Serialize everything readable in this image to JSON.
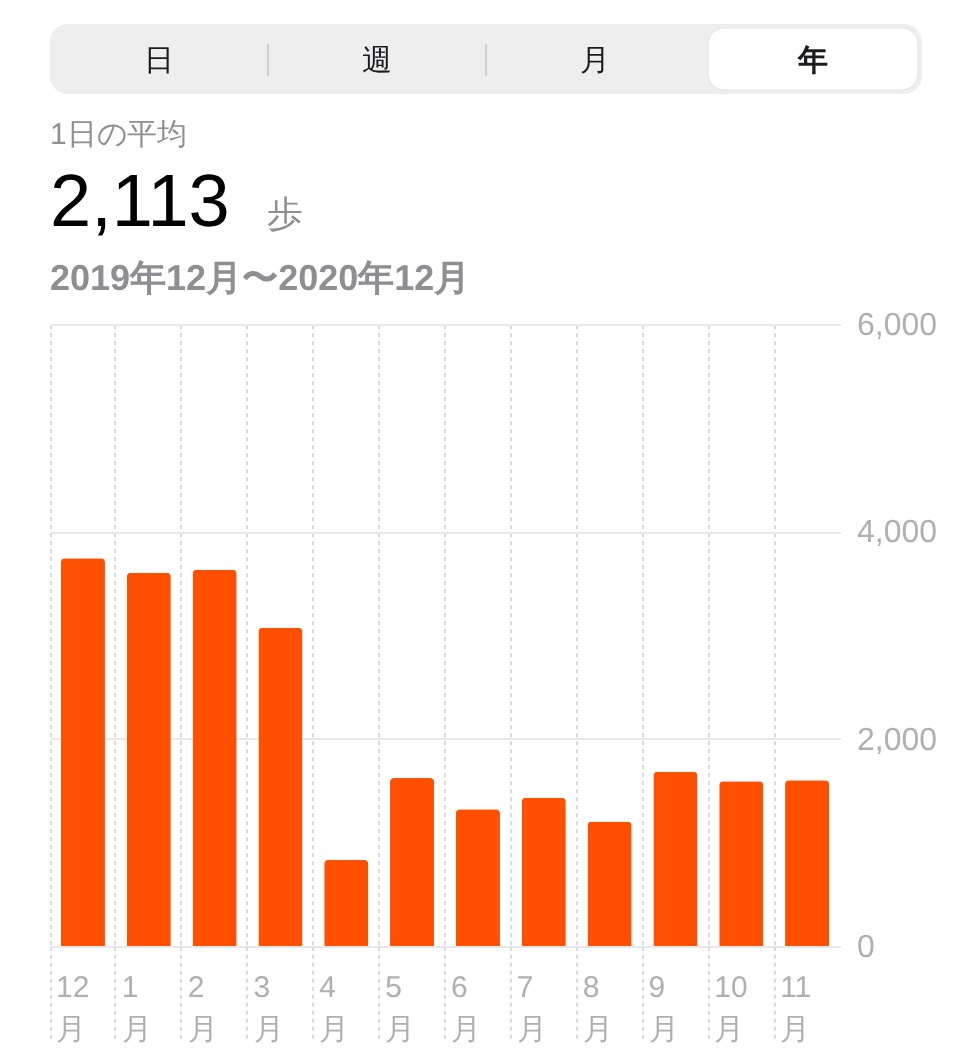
{
  "chart_data": {
    "type": "bar",
    "title": "1日の平均",
    "subtitle": "2,113 歩",
    "annotations": [
      "日",
      "週",
      "月",
      "年",
      "2019年12月〜2020年12月"
    ],
    "categories": [
      "12月",
      "1月",
      "2月",
      "3月",
      "4月",
      "5月",
      "6月",
      "7月",
      "8月",
      "9月",
      "10月",
      "11月"
    ],
    "values": [
      3740,
      3600,
      3630,
      3070,
      830,
      1620,
      1320,
      1430,
      1200,
      1680,
      1590,
      1600
    ],
    "color": "#ff4f00",
    "ylim": [
      0,
      6000
    ],
    "yticks": [
      0,
      {
        "value": 2000,
        "label": "2,000"
      },
      {
        "value": 4000,
        "label": "4,000"
      },
      {
        "value": 6000,
        "label": "6,000"
      }
    ],
    "grid": true
  }
}
